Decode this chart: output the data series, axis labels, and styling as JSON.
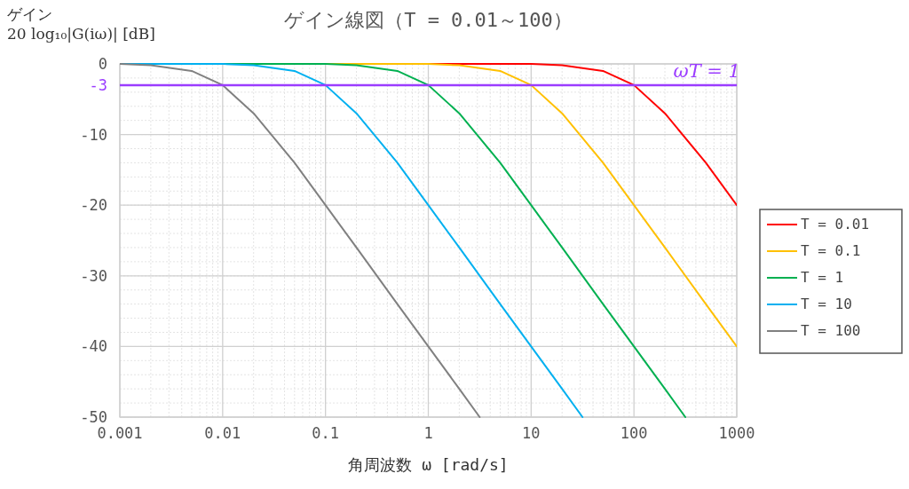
{
  "chart_data": {
    "type": "line",
    "title": "ゲイン線図（T = 0.01～100）",
    "xlabel": "角周波数 ω [rad/s]",
    "ylabel": "ゲイン\n20 log₁₀|G(iω)| [dB]",
    "log": "x",
    "xlim": [
      0.001,
      1000
    ],
    "ylim": [
      -50,
      0
    ],
    "xticks": [
      0.001,
      0.01,
      0.1,
      1,
      10,
      100,
      1000
    ],
    "yticks": [
      0,
      -3,
      -10,
      -20,
      -30,
      -40,
      -50
    ],
    "grid": true,
    "legend": "right",
    "line_style": "solid",
    "marker": "none",
    "ref_lines": [
      {
        "axis": "y",
        "value": -3,
        "color": "#9b3cff"
      }
    ],
    "annotations": [
      "ωT = 1"
    ],
    "series": [
      {
        "name": "T = 0.01",
        "color": "#ff0000",
        "x": [
          0.001,
          10,
          20,
          50,
          100,
          200,
          500,
          1000
        ],
        "values": [
          0,
          0,
          -0.2,
          -1,
          -3,
          -7,
          -14,
          -20
        ]
      },
      {
        "name": "T = 0.1",
        "color": "#ffc000",
        "x": [
          0.001,
          1,
          2,
          5,
          10,
          20,
          50,
          100,
          200,
          500,
          1000
        ],
        "values": [
          0,
          0,
          -0.2,
          -1,
          -3,
          -7,
          -14,
          -20,
          -26,
          -34,
          -40
        ]
      },
      {
        "name": "T = 1",
        "color": "#00b050",
        "x": [
          0.001,
          0.1,
          0.2,
          0.5,
          1,
          2,
          5,
          10,
          20,
          50,
          100,
          200,
          316
        ],
        "values": [
          0,
          0,
          -0.2,
          -1,
          -3,
          -7,
          -14,
          -20,
          -26,
          -34,
          -40,
          -46,
          -50
        ]
      },
      {
        "name": "T = 10",
        "color": "#00b0f0",
        "x": [
          0.001,
          0.01,
          0.02,
          0.05,
          0.1,
          0.2,
          0.5,
          1,
          2,
          5,
          10,
          20,
          31.6
        ],
        "values": [
          0,
          0,
          -0.2,
          -1,
          -3,
          -7,
          -14,
          -20,
          -26,
          -34,
          -40,
          -46,
          -50
        ]
      },
      {
        "name": "T = 100",
        "color": "#808080",
        "x": [
          0.001,
          0.002,
          0.005,
          0.01,
          0.02,
          0.05,
          0.1,
          0.2,
          0.5,
          1,
          2,
          3.16
        ],
        "values": [
          0,
          -0.2,
          -1,
          -3,
          -7,
          -14,
          -20,
          -26,
          -34,
          -40,
          -46,
          -50
        ]
      }
    ]
  }
}
